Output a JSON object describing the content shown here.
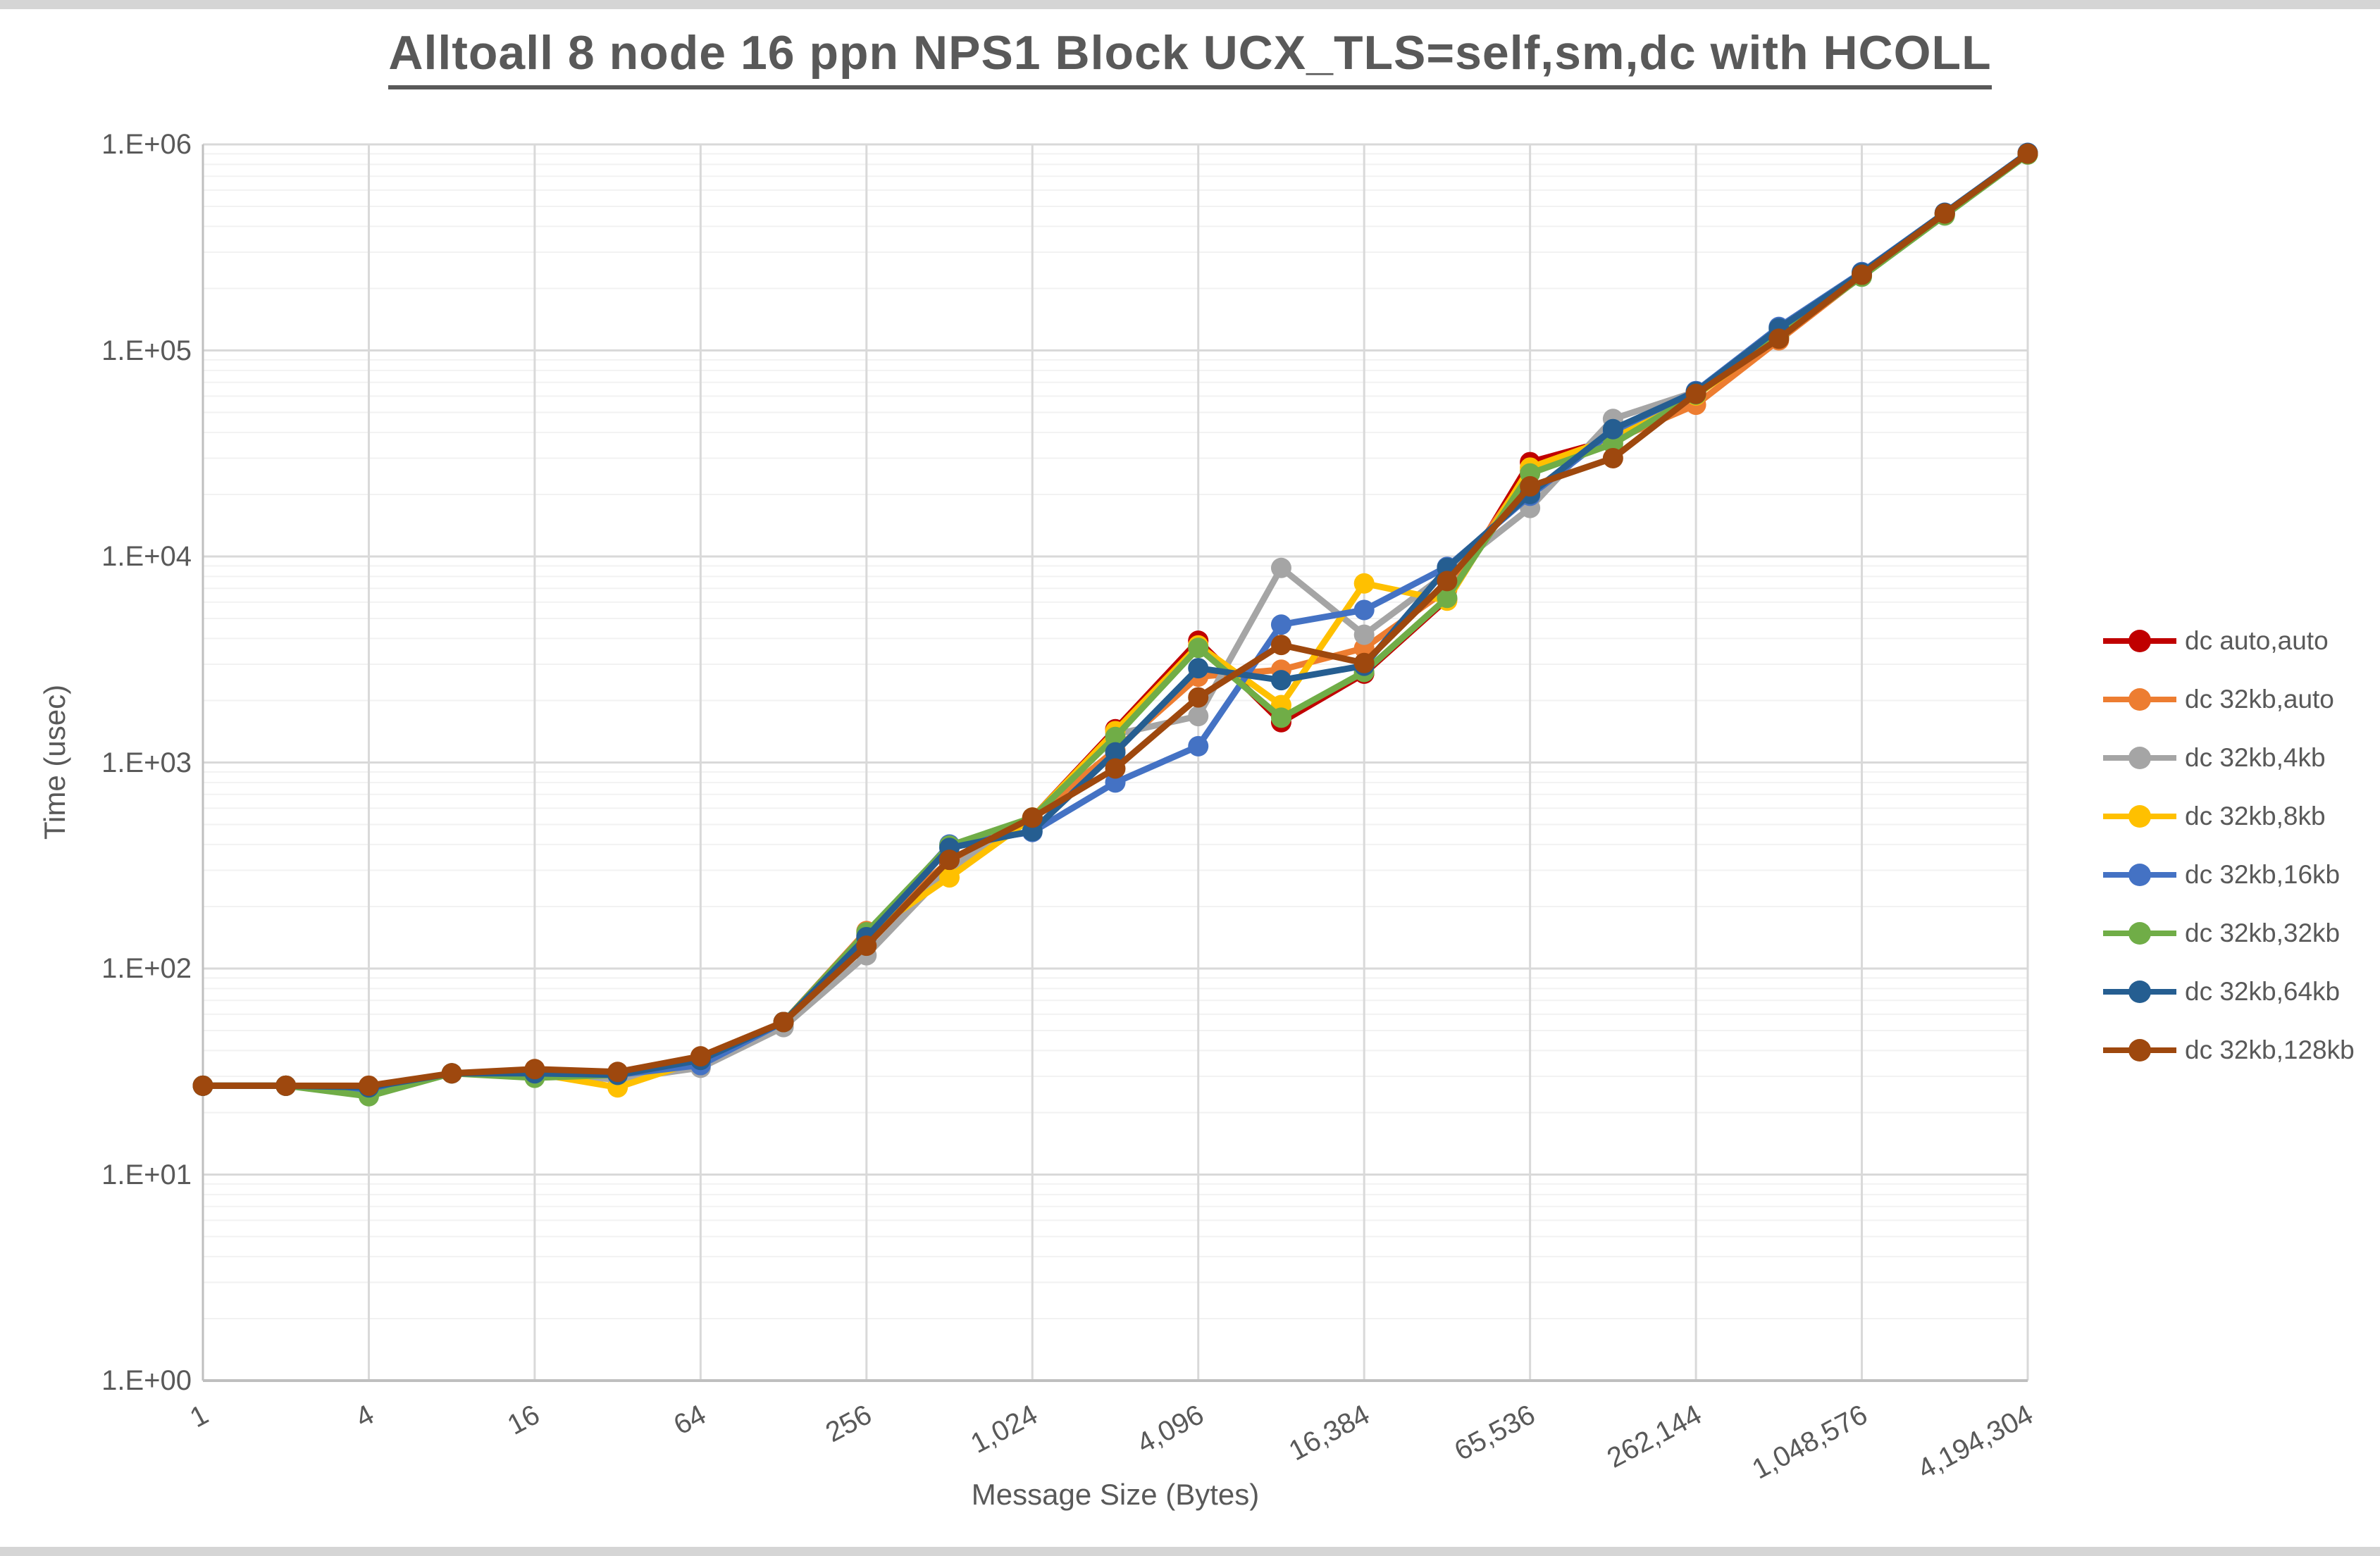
{
  "window": {
    "title_text": "Alltoall 8 node 16 ppn NPS1 Block UCX_TLS=self,sm,dc with HCOLL"
  },
  "chart_data": {
    "type": "line",
    "title": "Alltoall 8 node 16 ppn NPS1 Block UCX_TLS=self,sm,dc with HCOLL",
    "xlabel": "Message Size (Bytes)",
    "ylabel": "Time (usec)",
    "x_scale": "log2",
    "y_scale": "log10",
    "xlim": [
      1,
      4194304
    ],
    "ylim": [
      1,
      1000000
    ],
    "grid": "major-and-minor",
    "legend_position": "right",
    "x_tick_labels": [
      "1",
      "4",
      "16",
      "64",
      "256",
      "1,024",
      "4,096",
      "16,384",
      "65,536",
      "262,144",
      "1,048,576",
      "4,194,304"
    ],
    "y_tick_labels": [
      "1.E+00",
      "1.E+01",
      "1.E+02",
      "1.E+03",
      "1.E+04",
      "1.E+05",
      "1.E+06"
    ],
    "x": [
      1,
      2,
      4,
      8,
      16,
      32,
      64,
      128,
      256,
      512,
      1024,
      2048,
      4096,
      8192,
      16384,
      32768,
      65536,
      131072,
      262144,
      524288,
      1048576,
      2097152,
      4194304
    ],
    "series": [
      {
        "name": "dc auto,auto",
        "color": "#C00000",
        "values": [
          27,
          27,
          26.5,
          31,
          31,
          30.5,
          36.5,
          55,
          140,
          320,
          540,
          1450,
          3900,
          1570,
          2700,
          6200,
          28700,
          37000,
          61000,
          118000,
          232000,
          460000,
          900000
        ]
      },
      {
        "name": "dc 32kb,auto",
        "color": "#ED7D31",
        "values": [
          27,
          27,
          26.5,
          31,
          31,
          30.5,
          36.5,
          55,
          152,
          333,
          540,
          1150,
          2610,
          2820,
          3590,
          6900,
          26000,
          36500,
          54500,
          112000,
          230000,
          458000,
          898000
        ]
      },
      {
        "name": "dc 32kb,4kb",
        "color": "#A5A5A5",
        "values": [
          27,
          27,
          26.5,
          31,
          30.5,
          29,
          33,
          52,
          116,
          305,
          535,
          1370,
          1680,
          8800,
          4170,
          8300,
          17200,
          46500,
          63000,
          126000,
          236000,
          464000,
          905000
        ]
      },
      {
        "name": "dc 32kb,8kb",
        "color": "#FFC000",
        "values": [
          27,
          27,
          26.5,
          31,
          31,
          26.5,
          36,
          55,
          147,
          277,
          540,
          1420,
          3700,
          1900,
          7400,
          6100,
          27000,
          37500,
          60500,
          116000,
          231000,
          459000,
          897000
        ]
      },
      {
        "name": "dc 32kb,16kb",
        "color": "#4472C4",
        "values": [
          27,
          27,
          25.5,
          31,
          31,
          30.5,
          34,
          55,
          144,
          400,
          460,
          800,
          1200,
          4670,
          5500,
          8900,
          19700,
          40500,
          63500,
          130000,
          240000,
          466000,
          910000
        ]
      },
      {
        "name": "dc 32kb,32kb",
        "color": "#70AD47",
        "values": [
          27,
          27,
          24,
          31,
          29.5,
          30.5,
          36.5,
          55,
          150,
          395,
          540,
          1330,
          3600,
          1650,
          2750,
          6300,
          25300,
          35200,
          61000,
          117000,
          228000,
          452000,
          893000
        ]
      },
      {
        "name": "dc 32kb,64kb",
        "color": "#255E91",
        "values": [
          27,
          27,
          26.5,
          31,
          31,
          30.5,
          36,
          55,
          142,
          385,
          465,
          1120,
          2870,
          2510,
          2950,
          8800,
          20100,
          41500,
          63000,
          128000,
          238000,
          465000,
          908000
        ]
      },
      {
        "name": "dc 32kb,128kb",
        "color": "#9E480E",
        "values": [
          27,
          27,
          27,
          31,
          32.5,
          31.5,
          37.5,
          55,
          129,
          337,
          540,
          935,
          2070,
          3720,
          3040,
          7600,
          21900,
          30000,
          61500,
          114000,
          233000,
          462000,
          902000
        ]
      }
    ]
  }
}
